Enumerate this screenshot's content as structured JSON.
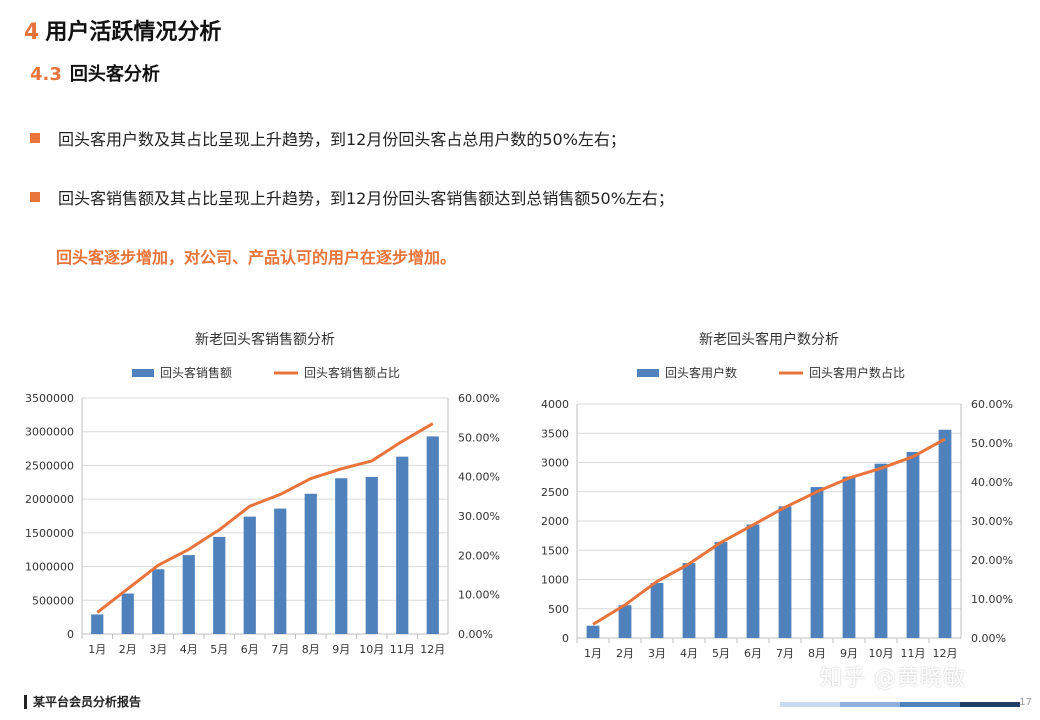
{
  "header": {
    "section_num": "4",
    "section_title": "用户活跃情况分析",
    "sub_num": "4.3",
    "sub_title": "回头客分析"
  },
  "bullets": [
    "回头客用户数及其占比呈现上升趋势，到12月份回头客占总用户数的50%左右；",
    "回头客销售额及其占比呈现上升趋势，到12月份回头客销售额达到总销售额50%左右；"
  ],
  "highlight": "回头客逐步增加，对公司、产品认可的用户在逐步增加。",
  "colors": {
    "accent": "#e8743b",
    "bar": "#4f81bd",
    "line": "#e8743b"
  },
  "chart_data": [
    {
      "type": "bar",
      "title": "新老回头客销售额分析",
      "categories": [
        "1月",
        "2月",
        "3月",
        "4月",
        "5月",
        "6月",
        "7月",
        "8月",
        "9月",
        "10月",
        "11月",
        "12月"
      ],
      "series": [
        {
          "name": "回头客销售额",
          "type": "bar",
          "axis": "left",
          "values": [
            290000,
            600000,
            960000,
            1170000,
            1440000,
            1740000,
            1860000,
            2080000,
            2310000,
            2330000,
            2630000,
            2930000
          ]
        },
        {
          "name": "回头客销售额占比",
          "type": "line",
          "axis": "right",
          "values": [
            5.5,
            11.5,
            17.5,
            21.5,
            26.5,
            32.5,
            35.5,
            39.5,
            42.0,
            44.0,
            49.0,
            53.5
          ]
        }
      ],
      "ylim_left": [
        0,
        3500000
      ],
      "yticks_left": [
        "0",
        "500000",
        "1000000",
        "1500000",
        "2000000",
        "2500000",
        "3000000",
        "3500000"
      ],
      "ylim_right": [
        0,
        60
      ],
      "yticks_right": [
        "0.00%",
        "10.00%",
        "20.00%",
        "30.00%",
        "40.00%",
        "50.00%",
        "60.00%"
      ],
      "grid": true,
      "legend": "top"
    },
    {
      "type": "bar",
      "title": "新老回头客用户数分析",
      "categories": [
        "1月",
        "2月",
        "3月",
        "4月",
        "5月",
        "6月",
        "7月",
        "8月",
        "9月",
        "10月",
        "11月",
        "12月"
      ],
      "series": [
        {
          "name": "回头客用户数",
          "type": "bar",
          "axis": "left",
          "values": [
            210,
            560,
            940,
            1280,
            1640,
            1940,
            2250,
            2580,
            2760,
            2980,
            3180,
            3560
          ]
        },
        {
          "name": "回头客用户数占比",
          "type": "line",
          "axis": "right",
          "values": [
            3.5,
            8.5,
            14.5,
            19.0,
            24.5,
            29.0,
            33.5,
            37.5,
            41.0,
            43.5,
            46.5,
            51.0
          ]
        }
      ],
      "ylim_left": [
        0,
        4000
      ],
      "yticks_left": [
        "0",
        "500",
        "1000",
        "1500",
        "2000",
        "2500",
        "3000",
        "3500",
        "4000"
      ],
      "ylim_right": [
        0,
        60
      ],
      "yticks_right": [
        "0.00%",
        "10.00%",
        "20.00%",
        "30.00%",
        "40.00%",
        "50.00%",
        "60.00%"
      ],
      "grid": true,
      "legend": "top"
    }
  ],
  "footer": {
    "report_name": "某平台会员分析报告",
    "page": "17",
    "watermark": "知乎 @黄晓敏"
  }
}
